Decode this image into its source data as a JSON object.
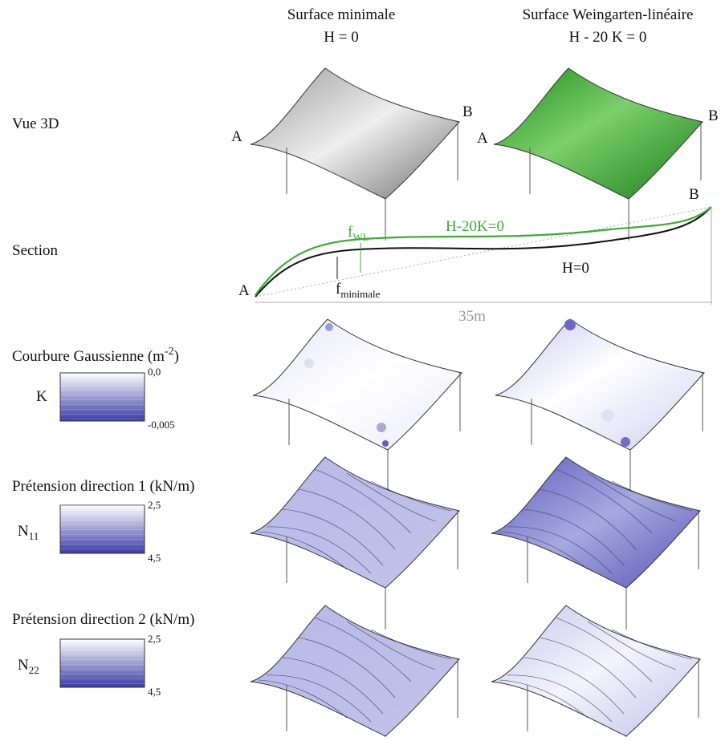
{
  "columns": [
    {
      "title": "Surface minimale",
      "equation": "H = 0"
    },
    {
      "title": "Surface Weingarten-linéaire",
      "equation": "H - 20 K = 0"
    }
  ],
  "view3d": {
    "label": "Vue 3D",
    "point_a": "A",
    "point_b": "B"
  },
  "section": {
    "label": "Section",
    "point_a": "A",
    "point_b": "B",
    "f_wl": {
      "base": "f",
      "sub": "WL"
    },
    "curve_wl": "H-20K=0",
    "curve_min": "H=0",
    "f_min": {
      "base": "f",
      "sub": "minimale"
    },
    "span": "35m"
  },
  "gaussian": {
    "label": {
      "text": "Courbure Gaussienne (m",
      "sup": "-2",
      "close": ")"
    },
    "symbol": "K",
    "top": "0,0",
    "bottom": "-0,005"
  },
  "n11": {
    "label": "Prétension direction 1 (kN/m)",
    "symbol": {
      "base": "N",
      "sub": "11"
    },
    "top": "2,5",
    "bottom": "4,5"
  },
  "n22": {
    "label": "Prétension direction 2 (kN/m)",
    "symbol": {
      "base": "N",
      "sub": "22"
    },
    "top": "2,5",
    "bottom": "4,5"
  }
}
